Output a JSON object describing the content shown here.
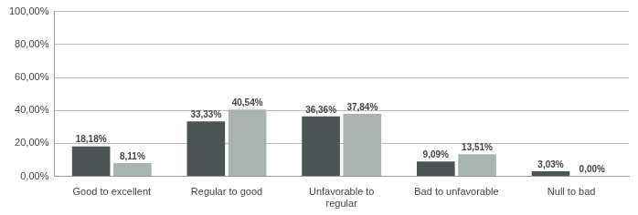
{
  "chart_data": {
    "type": "bar",
    "categories": [
      "Good to excellent",
      "Regular to good",
      "Unfavorable to regular",
      "Bad to unfavorable",
      "Null to bad"
    ],
    "series": [
      {
        "color": "#4b5455",
        "values": [
          18.18,
          33.33,
          36.36,
          9.09,
          3.03
        ],
        "value_labels": [
          "18,18%",
          "33,33%",
          "36,36%",
          "9,09%",
          "3,03%"
        ]
      },
      {
        "color": "#a9b4b0",
        "values": [
          8.11,
          40.54,
          37.84,
          13.51,
          0.0
        ],
        "value_labels": [
          "8,11%",
          "40,54%",
          "37,84%",
          "13,51%",
          "0,00%"
        ]
      }
    ],
    "ylim": [
      0,
      100
    ],
    "yticks": [
      {
        "value": 0,
        "label": "0,00%"
      },
      {
        "value": 20,
        "label": "20,00%"
      },
      {
        "value": 40,
        "label": "40,00%"
      },
      {
        "value": 60,
        "label": "60,00%"
      },
      {
        "value": 80,
        "label": "80,00%"
      },
      {
        "value": 100,
        "label": "100,00%"
      }
    ],
    "grid": true,
    "data_labels": true
  }
}
